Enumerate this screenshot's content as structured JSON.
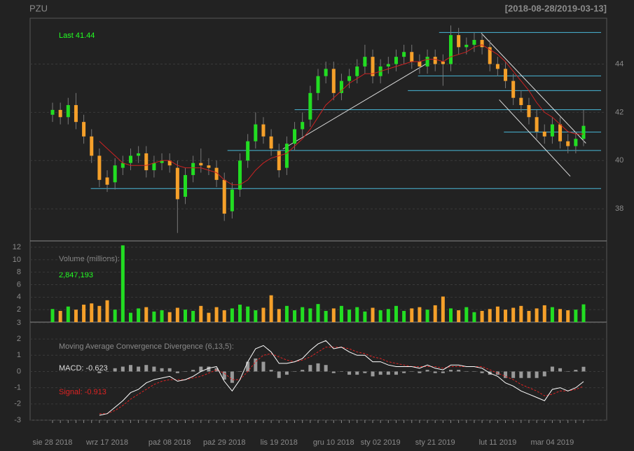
{
  "chart_data": {
    "type": "candlestick",
    "title": "PZU",
    "subtitle": "[2018-08-28/2019-03-13]",
    "last_label": "Last 41.44",
    "up_color": "#22dd22",
    "down_color": "#f5a02a",
    "categories": [
      "sie 28 2018",
      null,
      null,
      null,
      null,
      null,
      null,
      "wrz 17 2018",
      null,
      null,
      null,
      null,
      null,
      null,
      null,
      "paź 08 2018",
      null,
      null,
      null,
      null,
      null,
      null,
      "paź 29 2018",
      null,
      null,
      null,
      null,
      null,
      null,
      "lis 19 2018",
      null,
      null,
      null,
      null,
      null,
      null,
      "gru 10 2018",
      null,
      null,
      null,
      null,
      null,
      "sty 02 2019",
      null,
      null,
      null,
      null,
      null,
      null,
      "sty 21 2019",
      null,
      null,
      null,
      null,
      null,
      null,
      null,
      "lut 11 2019",
      null,
      null,
      null,
      null,
      null,
      null,
      "mar 04 2019",
      null,
      null,
      null,
      null
    ],
    "open": [
      41.9,
      42.1,
      41.8,
      42.3,
      41.6,
      41.0,
      40.2,
      39.3,
      39.1,
      39.7,
      39.9,
      40.2,
      40.3,
      39.6,
      39.9,
      40.0,
      39.7,
      38.5,
      39.4,
      39.9,
      39.8,
      39.7,
      39.2,
      37.9,
      38.8,
      40.0,
      40.8,
      41.5,
      41.0,
      40.4,
      39.7,
      40.7,
      41.3,
      41.7,
      42.8,
      43.5,
      43.8,
      42.8,
      43.3,
      43.5,
      43.9,
      44.3,
      43.5,
      43.9,
      44.0,
      44.3,
      44.5,
      44.1,
      43.9,
      44.3,
      44.1,
      44.0,
      45.2,
      44.7,
      44.8,
      45.0,
      44.7,
      44.0,
      43.8,
      43.3,
      42.6,
      42.3,
      41.8,
      41.2,
      41.0,
      41.5,
      40.8,
      40.6,
      40.9
    ],
    "high": [
      42.4,
      42.4,
      42.6,
      42.8,
      41.9,
      41.3,
      40.5,
      39.6,
      40.1,
      40.2,
      40.5,
      40.6,
      40.6,
      40.2,
      40.3,
      40.3,
      40.0,
      39.7,
      40.2,
      40.5,
      40.1,
      40.0,
      39.5,
      39.1,
      40.3,
      41.1,
      42.0,
      41.8,
      41.3,
      40.7,
      41.0,
      41.6,
      42.0,
      43.1,
      43.8,
      44.1,
      44.1,
      43.6,
      43.8,
      44.2,
      44.8,
      44.6,
      44.2,
      44.3,
      44.6,
      44.8,
      44.8,
      44.4,
      44.6,
      44.6,
      44.4,
      45.6,
      45.5,
      45.1,
      45.3,
      45.3,
      45.0,
      44.3,
      44.1,
      43.6,
      42.9,
      42.6,
      42.1,
      41.5,
      41.8,
      41.8,
      41.1,
      41.2,
      42.1
    ],
    "low": [
      41.6,
      41.5,
      41.5,
      41.3,
      40.7,
      39.9,
      38.9,
      38.7,
      38.8,
      39.4,
      39.6,
      39.9,
      39.3,
      39.3,
      39.6,
      39.5,
      37.0,
      38.2,
      39.1,
      39.5,
      39.4,
      38.9,
      37.5,
      37.6,
      38.5,
      39.7,
      40.5,
      40.7,
      40.2,
      39.3,
      39.4,
      40.4,
      41.0,
      41.4,
      42.5,
      43.2,
      42.5,
      42.5,
      43.0,
      43.2,
      43.6,
      43.2,
      43.2,
      43.6,
      43.7,
      44.0,
      43.8,
      43.6,
      43.6,
      43.7,
      43.1,
      43.7,
      44.4,
      44.4,
      44.5,
      44.4,
      43.7,
      43.5,
      43.0,
      42.3,
      42.0,
      41.5,
      40.9,
      40.7,
      40.7,
      40.5,
      40.3,
      40.3,
      40.6
    ],
    "close": [
      42.1,
      41.8,
      42.3,
      41.6,
      41.0,
      40.2,
      39.2,
      39.0,
      39.8,
      39.9,
      40.2,
      40.3,
      39.6,
      39.9,
      40.0,
      39.8,
      38.4,
      39.4,
      39.9,
      39.8,
      39.7,
      39.2,
      37.8,
      38.8,
      40.0,
      40.8,
      41.5,
      41.0,
      40.5,
      39.6,
      40.7,
      41.3,
      41.6,
      42.8,
      43.5,
      43.8,
      42.8,
      43.3,
      43.5,
      43.9,
      44.3,
      43.5,
      43.9,
      44.0,
      44.3,
      44.5,
      44.1,
      43.9,
      44.3,
      44.0,
      44.0,
      45.2,
      44.7,
      44.8,
      45.0,
      44.7,
      44.0,
      43.8,
      43.3,
      42.6,
      42.3,
      41.8,
      41.2,
      41.0,
      41.5,
      40.8,
      40.6,
      40.9,
      41.44
    ],
    "ylim": [
      36.7,
      45.9
    ],
    "yticks": [
      38,
      40,
      42,
      44
    ],
    "ma": {
      "color": "#cc2222",
      "values": [
        null,
        null,
        null,
        null,
        null,
        null,
        40.8,
        40.5,
        40.2,
        39.9,
        39.8,
        39.8,
        39.8,
        39.9,
        40.0,
        40.0,
        39.8,
        39.7,
        39.7,
        39.7,
        39.6,
        39.5,
        39.2,
        39.0,
        39.0,
        39.2,
        39.6,
        39.9,
        40.1,
        40.2,
        40.3,
        40.6,
        40.9,
        41.3,
        41.8,
        42.3,
        42.6,
        42.9,
        43.2,
        43.4,
        43.6,
        43.6,
        43.7,
        43.8,
        43.9,
        44.0,
        44.1,
        44.1,
        44.2,
        44.2,
        44.1,
        44.3,
        44.4,
        44.5,
        44.7,
        44.8,
        44.6,
        44.4,
        44.1,
        43.7,
        43.3,
        42.9,
        42.4,
        42.0,
        41.8,
        41.5,
        41.2,
        41.1,
        41.1
      ]
    },
    "levels": {
      "color": "#4ab8d8",
      "items": [
        {
          "value": 45.31,
          "start": 49.5
        },
        {
          "value": 43.51,
          "start": 46.8
        },
        {
          "value": 42.9,
          "start": 45.5
        },
        {
          "value": 42.11,
          "start": 31
        },
        {
          "value": 41.18,
          "start": 57.8
        },
        {
          "value": 40.42,
          "start": 22.4
        },
        {
          "value": 38.84,
          "start": 4.9
        }
      ]
    },
    "trendlines": {
      "color": "#dddddd",
      "items": [
        {
          "from": [
            29.5,
            40.48
          ],
          "to": [
            47.8,
            44.0
          ]
        },
        {
          "from": [
            54.9,
            45.28
          ],
          "to": [
            68.3,
            40.72
          ]
        },
        {
          "from": [
            57.2,
            42.52
          ],
          "to": [
            66.3,
            39.35
          ]
        }
      ]
    },
    "volume": {
      "title": "Volume (millions):",
      "last_label": "2,847,193",
      "ylim": [
        0,
        12.9
      ],
      "yticks": [
        2,
        4,
        6,
        8,
        10,
        12
      ],
      "values": [
        2.1,
        1.8,
        2.5,
        2.0,
        2.8,
        3.0,
        2.6,
        3.5,
        2.0,
        12.3,
        1.5,
        2.2,
        2.4,
        1.7,
        1.9,
        1.6,
        2.3,
        2.0,
        1.8,
        2.6,
        1.5,
        2.4,
        1.9,
        2.2,
        2.8,
        2.5,
        1.9,
        2.3,
        4.3,
        2.1,
        2.6,
        1.9,
        2.4,
        2.2,
        2.9,
        1.8,
        2.2,
        2.6,
        2.0,
        2.4,
        1.7,
        2.3,
        1.9,
        2.1,
        2.6,
        1.8,
        2.2,
        2.4,
        2.0,
        2.7,
        4.1,
        2.2,
        1.9,
        2.4,
        1.6,
        1.8,
        2.1,
        2.5,
        2.0,
        2.3,
        2.6,
        1.8,
        2.2,
        2.7,
        2.4,
        2.1,
        1.9,
        2.0,
        2.85
      ]
    },
    "macd": {
      "title": "Moving Average Convergence Divergence (6,13,5):",
      "macd_label": "MACD: -0.623",
      "signal_label": "Signal: -0.913",
      "ylim": [
        -3,
        3.04
      ],
      "yticks": [
        -3,
        -2,
        -1,
        0,
        1,
        2,
        3
      ],
      "macd_color": "#ffffff",
      "signal_color": "#dd2222",
      "hist_color": "#999999",
      "macd_values": [
        null,
        null,
        null,
        null,
        null,
        null,
        -2.7,
        -2.6,
        -2.2,
        -1.8,
        -1.3,
        -1.1,
        -0.7,
        -0.5,
        -0.4,
        -0.3,
        -0.6,
        -0.5,
        -0.3,
        0.0,
        0.2,
        0.3,
        -0.6,
        -1.2,
        -0.5,
        0.6,
        1.4,
        1.6,
        1.2,
        0.5,
        0.5,
        0.6,
        0.8,
        1.3,
        1.7,
        1.9,
        1.4,
        1.5,
        1.2,
        1.0,
        1.0,
        0.6,
        0.6,
        0.4,
        0.3,
        0.3,
        0.3,
        0.2,
        0.4,
        0.2,
        0.1,
        0.4,
        0.4,
        0.3,
        0.3,
        0.2,
        -0.1,
        -0.3,
        -0.7,
        -0.9,
        -1.2,
        -1.4,
        -1.6,
        -1.8,
        -1.1,
        -1.0,
        -1.2,
        -1.0,
        -0.623
      ],
      "signal_values": [
        null,
        null,
        null,
        null,
        null,
        null,
        -2.6,
        -2.6,
        -2.4,
        -2.1,
        -1.7,
        -1.4,
        -1.1,
        -0.8,
        -0.6,
        -0.5,
        -0.5,
        -0.5,
        -0.4,
        -0.3,
        -0.1,
        0.1,
        -0.1,
        -0.5,
        -0.5,
        0.0,
        0.6,
        1.0,
        1.1,
        0.9,
        0.7,
        0.6,
        0.7,
        0.9,
        1.2,
        1.5,
        1.5,
        1.5,
        1.4,
        1.2,
        1.1,
        0.9,
        0.8,
        0.6,
        0.5,
        0.4,
        0.3,
        0.3,
        0.3,
        0.3,
        0.2,
        0.3,
        0.3,
        0.3,
        0.3,
        0.3,
        0.1,
        -0.1,
        -0.3,
        -0.5,
        -0.8,
        -1.0,
        -1.2,
        -1.5,
        -1.4,
        -1.2,
        -1.2,
        -1.1,
        -0.913
      ],
      "hist_values": [
        null,
        null,
        null,
        null,
        null,
        null,
        -0.1,
        0,
        0.2,
        0.3,
        0.4,
        0.3,
        0.4,
        0.3,
        0.2,
        0.2,
        -0.1,
        0,
        0.1,
        0.3,
        0.3,
        0.2,
        -0.5,
        -0.7,
        0,
        0.6,
        0.8,
        0.6,
        0.1,
        -0.4,
        -0.2,
        0,
        0.1,
        0.4,
        0.5,
        0.4,
        -0.1,
        0,
        -0.2,
        -0.2,
        -0.1,
        -0.3,
        -0.2,
        -0.2,
        -0.2,
        -0.1,
        0,
        -0.1,
        0.1,
        -0.1,
        -0.1,
        0.1,
        0.1,
        0,
        0,
        -0.1,
        -0.2,
        -0.2,
        -0.4,
        -0.4,
        -0.4,
        -0.4,
        -0.4,
        -0.3,
        0.3,
        0.2,
        0,
        0.1,
        0.29
      ]
    }
  }
}
